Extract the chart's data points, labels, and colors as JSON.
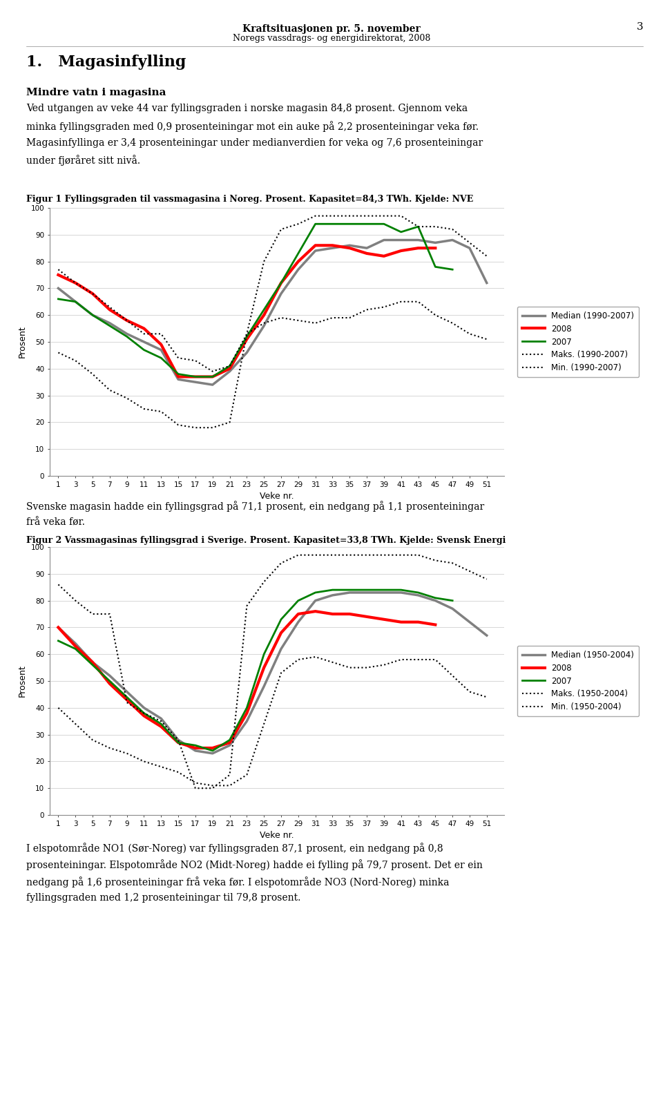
{
  "header_title": "Kraftsituasjonen pr. 5. november",
  "header_subtitle": "Noregs vassdrags- og energidirektorat, 2008",
  "page_number": "3",
  "section_title": "1.   Magasinfylling",
  "section_subtitle": "Mindre vatn i magasina",
  "body_line1": "Ved utgangen av veke 44 var fyllingsgraden i norske magasin 84,8 prosent. Gjennom veka",
  "body_line2": "minka fyllingsgraden med 0,9 prosenteiningar mot ein auke på 2,2 prosenteiningar veka før.",
  "body_line3": "Magasinfyllinga er 3,4 prosenteiningar under medianverdien for veka og 7,6 prosenteiningar",
  "body_line4": "under fjøråret sitt nivå.",
  "fig1_caption": "Figur 1 Fyllingsgraden til vassmagasina i Noreg. Prosent. Kapasitet=84,3 TWh. Kjelde: NVE",
  "fig2_caption": "Figur 2 Vassmagasinas fyllingsgrad i Sverige. Prosent. Kapasitet=33,8 TWh. Kjelde: Svensk Energi",
  "between_line1": "Svenske magasin hadde ein fyllingsgrad på 71,1 prosent, ein nedgang på 1,1 prosenteiningar",
  "between_line2": "frå veka før.",
  "footer_line1": "I elspotområde NO1 (Sør-Noreg) var fyllingsgraden 87,1 prosent, ein nedgang på 0,8",
  "footer_line2": "prosenteiningar. Elspotområde NO2 (Midt-Noreg) hadde ei fylling på 79,7 prosent. Det er ein",
  "footer_line3": "nedgang på 1,6 prosenteiningar frå veka før. I elspotområde NO3 (Nord-Noreg) minka",
  "footer_line4": "fyllingsgraden med 1,2 prosenteiningar til 79,8 prosent.",
  "xlabel": "Veke nr.",
  "ylabel": "Prosent",
  "weeks": [
    1,
    3,
    5,
    7,
    9,
    11,
    13,
    15,
    17,
    19,
    21,
    23,
    25,
    27,
    29,
    31,
    33,
    35,
    37,
    39,
    41,
    43,
    45,
    47,
    49,
    51
  ],
  "fig1": {
    "median": [
      70,
      65,
      60,
      57,
      53,
      50,
      47,
      36,
      35,
      34,
      39,
      46,
      56,
      68,
      77,
      84,
      85,
      86,
      85,
      88,
      88,
      88,
      87,
      88,
      85,
      72
    ],
    "y2008": [
      75,
      72,
      68,
      62,
      58,
      55,
      49,
      37,
      37,
      37,
      40,
      51,
      60,
      72,
      80,
      86,
      86,
      85,
      83,
      82,
      84,
      85,
      85,
      null,
      null,
      null
    ],
    "y2007": [
      66,
      65,
      60,
      56,
      52,
      47,
      44,
      38,
      37,
      37,
      41,
      52,
      62,
      72,
      83,
      94,
      94,
      94,
      94,
      94,
      91,
      93,
      78,
      77,
      null,
      null
    ],
    "maks": [
      77,
      72,
      68,
      63,
      58,
      53,
      53,
      44,
      43,
      39,
      41,
      53,
      80,
      92,
      94,
      97,
      97,
      97,
      97,
      97,
      97,
      93,
      93,
      92,
      87,
      82
    ],
    "min": [
      46,
      43,
      38,
      32,
      29,
      25,
      24,
      19,
      18,
      18,
      20,
      53,
      57,
      59,
      58,
      57,
      59,
      59,
      62,
      63,
      65,
      65,
      60,
      57,
      53,
      51
    ],
    "legend": [
      "Median (1990-2007)",
      "2008",
      "2007",
      "Maks. (1990-2007)",
      "Min. (1990-2007)"
    ],
    "colors": [
      "#808080",
      "#ff0000",
      "#008000",
      "#000000",
      "#000000"
    ],
    "styles": [
      "-",
      "-",
      "-",
      ":",
      ":"
    ],
    "widths": [
      2.5,
      3.0,
      2.0,
      1.5,
      1.5
    ]
  },
  "fig2": {
    "median": [
      70,
      64,
      57,
      52,
      46,
      40,
      36,
      28,
      24,
      23,
      26,
      35,
      48,
      62,
      72,
      80,
      82,
      83,
      83,
      83,
      83,
      82,
      80,
      77,
      72,
      67
    ],
    "y2008": [
      70,
      63,
      57,
      49,
      43,
      37,
      33,
      27,
      25,
      25,
      27,
      38,
      55,
      68,
      75,
      76,
      75,
      75,
      74,
      73,
      72,
      72,
      71,
      null,
      null,
      null
    ],
    "y2007": [
      65,
      62,
      56,
      50,
      44,
      38,
      34,
      27,
      26,
      24,
      28,
      40,
      60,
      73,
      80,
      83,
      84,
      84,
      84,
      84,
      84,
      83,
      81,
      80,
      null,
      null
    ],
    "maks": [
      86,
      80,
      75,
      75,
      42,
      38,
      35,
      28,
      10,
      10,
      15,
      78,
      87,
      94,
      97,
      97,
      97,
      97,
      97,
      97,
      97,
      97,
      95,
      94,
      91,
      88
    ],
    "min": [
      40,
      34,
      28,
      25,
      23,
      20,
      18,
      16,
      12,
      11,
      11,
      15,
      34,
      53,
      58,
      59,
      57,
      55,
      55,
      56,
      58,
      58,
      58,
      52,
      46,
      44
    ],
    "legend": [
      "Median (1950-2004)",
      "2008",
      "2007",
      "Maks. (1950-2004)",
      "Min. (1950-2004)"
    ],
    "colors": [
      "#808080",
      "#ff0000",
      "#008000",
      "#000000",
      "#000000"
    ],
    "styles": [
      "-",
      "-",
      "-",
      ":",
      ":"
    ],
    "widths": [
      2.5,
      3.0,
      2.0,
      1.5,
      1.5
    ]
  },
  "ylim": [
    0,
    100
  ],
  "yticks": [
    0,
    10,
    20,
    30,
    40,
    50,
    60,
    70,
    80,
    90,
    100
  ],
  "bg_color": "#ffffff",
  "grid_color": "#d0d0d0"
}
